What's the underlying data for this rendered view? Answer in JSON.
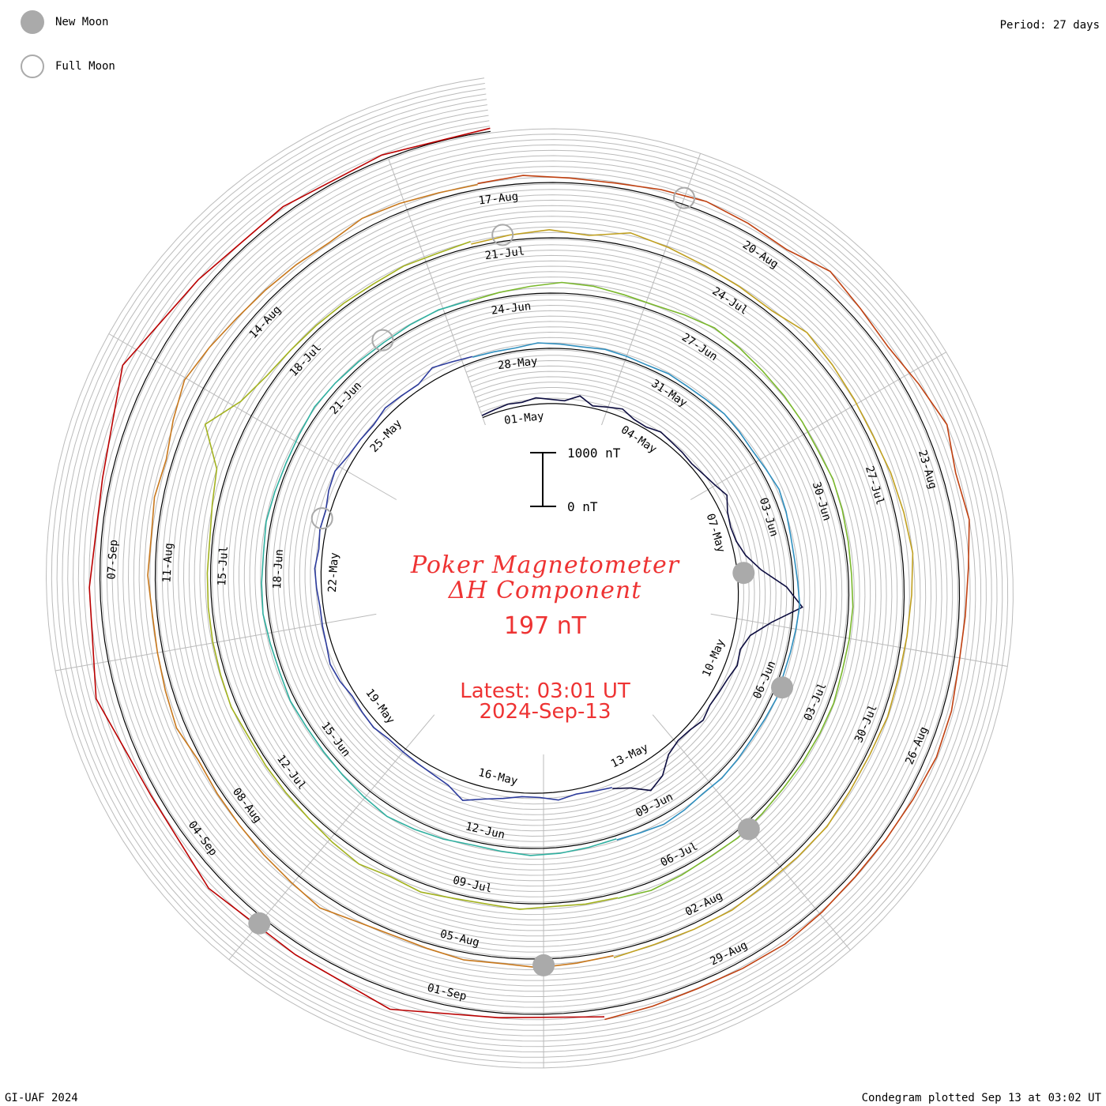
{
  "legend": {
    "new_moon_label": "New Moon",
    "full_moon_label": "Full Moon"
  },
  "header": {
    "period": "Period: 27 days"
  },
  "footer": {
    "left": "GI-UAF 2024",
    "right": "Condegram plotted Sep 13 at 03:02 UT"
  },
  "title": {
    "line1": "Poker Magnetometer",
    "line2": "ΔH Component",
    "value": "197 nT",
    "latest_line1": "Latest: 03:01 UT",
    "latest_line2": "2024-Sep-13"
  },
  "scale_bar": {
    "top_label": "1000 nT",
    "bottom_label": "0 nT"
  },
  "colors": {
    "background": "#ffffff",
    "grid": "#bbbbbb",
    "baseline": "#000000",
    "title": "#ee3333",
    "new_moon": "#aaaaaa",
    "full_moon": "#aaaaaa"
  },
  "chart_data": {
    "type": "line",
    "subtype": "polar spiral condegram",
    "period_days": 27,
    "scale_nT": [
      0,
      1000
    ],
    "current_value_nT": 197,
    "start_date": "2024-04-30",
    "end_date": "2024-09-13",
    "series": [
      {
        "color": "#0d0d40",
        "values": [
          40,
          60,
          90,
          70,
          120,
          80,
          60,
          180,
          40,
          90,
          150,
          60,
          40,
          110,
          80,
          70,
          50,
          90,
          150,
          250,
          120,
          70,
          90,
          200,
          450,
          900,
          1200,
          650,
          300,
          180,
          220,
          150,
          120,
          100,
          160,
          90,
          70,
          150,
          400,
          520,
          300,
          180
        ]
      },
      {
        "color": "#2b3a9c",
        "values": [
          160,
          120,
          90,
          150,
          80,
          70,
          140,
          220,
          350,
          180,
          120,
          90,
          70,
          60,
          110,
          90,
          70,
          130,
          160,
          100,
          80,
          60,
          90,
          120,
          70,
          110,
          90,
          160,
          200,
          120,
          100,
          80,
          140,
          110,
          90,
          220,
          150,
          100
        ]
      },
      {
        "color": "#2f8fbf",
        "values": [
          90,
          70,
          60,
          110,
          80,
          60,
          90,
          70,
          50,
          80,
          60,
          70,
          100,
          80,
          60,
          90,
          140,
          110,
          70,
          60,
          80,
          120,
          90,
          70,
          60,
          100,
          80,
          70,
          90,
          110,
          90,
          130,
          160,
          110,
          80
        ]
      },
      {
        "color": "#2fb0a0",
        "values": [
          60,
          80,
          110,
          130,
          90,
          70,
          120,
          160,
          200,
          150,
          110,
          80,
          70,
          90,
          60,
          70,
          100,
          80,
          60,
          90,
          70,
          60,
          80,
          120,
          100,
          80,
          70,
          90,
          110,
          80
        ]
      },
      {
        "color": "#7ab82c",
        "values": [
          70,
          100,
          140,
          200,
          180,
          130,
          110,
          160,
          220,
          180,
          140,
          120,
          100,
          80,
          110,
          90,
          70,
          60,
          80,
          70,
          60,
          90,
          80,
          70,
          60,
          80,
          110,
          90,
          120,
          150,
          100
        ]
      },
      {
        "color": "#a3b21e",
        "values": [
          90,
          80,
          60,
          110,
          70,
          90,
          160,
          120,
          200,
          150,
          100,
          80,
          70,
          60,
          110,
          90,
          80,
          70,
          60,
          50,
          110,
          200,
          700,
          300,
          150,
          100,
          80,
          70,
          60,
          90,
          70,
          110
        ]
      },
      {
        "color": "#c0a020",
        "values": [
          60,
          100,
          150,
          80,
          250,
          180,
          120,
          90,
          70,
          200,
          150,
          110,
          90,
          130,
          160,
          200,
          140,
          100,
          80,
          90,
          60,
          70,
          110,
          90,
          80,
          120,
          100,
          90,
          130
        ]
      },
      {
        "color": "#c8781c",
        "values": [
          90,
          120,
          160,
          110,
          140,
          90,
          70,
          120,
          250,
          180,
          140,
          100,
          80,
          60,
          170,
          130,
          100,
          90,
          140,
          110,
          160,
          120,
          250,
          380,
          300,
          220,
          180,
          150,
          120,
          200,
          160,
          110,
          90
        ]
      },
      {
        "color": "#c04010",
        "values": [
          110,
          150,
          90,
          80,
          140,
          200,
          160,
          120,
          300,
          200,
          150,
          260,
          400,
          250,
          300,
          180,
          120,
          100,
          160,
          180,
          130,
          100,
          90,
          120,
          160,
          130,
          110,
          150,
          200
        ]
      },
      {
        "color": "#bb0000",
        "values": [
          150,
          90,
          350,
          200,
          280,
          120,
          380,
          200,
          150,
          500,
          200,
          130,
          90,
          60
        ]
      }
    ],
    "date_labels": [
      "01-May",
      "04-May",
      "07-May",
      "10-May",
      "13-May",
      "16-May",
      "19-May",
      "22-May",
      "25-May",
      "28-May",
      "31-May",
      "03-Jun",
      "06-Jun",
      "09-Jun",
      "12-Jun",
      "15-Jun",
      "18-Jun",
      "21-Jun",
      "24-Jun",
      "27-Jun",
      "30-Jun",
      "03-Jul",
      "06-Jul",
      "09-Jul",
      "12-Jul",
      "15-Jul",
      "18-Jul",
      "21-Jul",
      "24-Jul",
      "27-Jul",
      "30-Jul",
      "02-Aug",
      "05-Aug",
      "08-Aug",
      "11-Aug",
      "14-Aug",
      "17-Aug",
      "20-Aug",
      "23-Aug",
      "26-Aug",
      "29-Aug",
      "01-Sep",
      "04-Sep",
      "07-Sep"
    ],
    "new_moons": [
      "2024-05-08",
      "2024-06-06",
      "2024-07-05",
      "2024-08-04",
      "2024-09-03"
    ],
    "full_moons": [
      "2024-05-23",
      "2024-06-22",
      "2024-07-21",
      "2024-08-19"
    ]
  }
}
